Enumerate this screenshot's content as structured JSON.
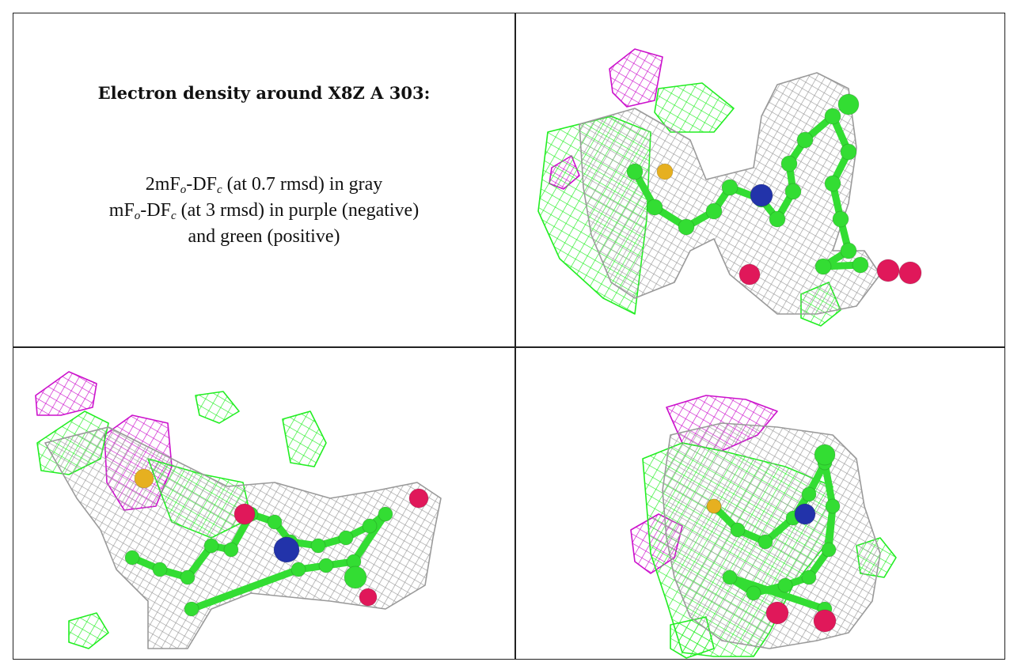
{
  "panel_text": {
    "title": "Electron density around X8Z A 303:",
    "line1": {
      "prefix": "2mF",
      "sub1": "o",
      "mid": "-DF",
      "sub2": "c",
      "suffix": " (at 0.7 rmsd) in gray"
    },
    "line2": {
      "prefix": "mF",
      "sub1": "o",
      "mid": "-DF",
      "sub2": "c",
      "suffix": " (at 3 rmsd) in purple (negative)"
    },
    "line3": "and green (positive)"
  },
  "colors": {
    "map_2fofc": "#9a9a9a",
    "fofc_positive": "#22ee22",
    "fofc_negative": "#cc11cc",
    "carbon": "#33dd33",
    "nitrogen": "#2233aa",
    "oxygen": "#e0185a",
    "sulfur": "#e6b020"
  },
  "views": [
    {
      "name": "view-top-right"
    },
    {
      "name": "view-bottom-left"
    },
    {
      "name": "view-bottom-right"
    }
  ]
}
